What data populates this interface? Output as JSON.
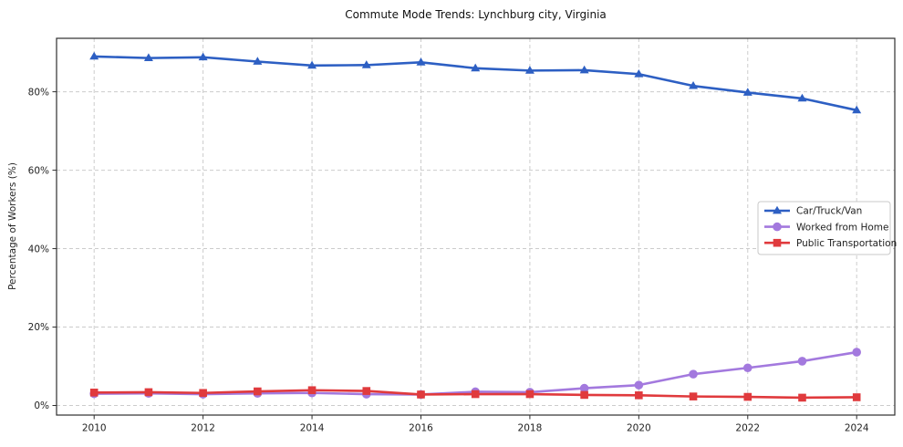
{
  "figure": {
    "title": "Commute Mode Trends: Lynchburg city, Virginia",
    "ylabel": "Percentage of Workers (%)"
  },
  "chart_data": {
    "type": "line",
    "title": "Commute Mode Trends: Lynchburg city, Virginia",
    "xlabel": "",
    "ylabel": "Percentage of Workers (%)",
    "x": [
      2010,
      2011,
      2012,
      2013,
      2014,
      2015,
      2016,
      2017,
      2018,
      2019,
      2020,
      2021,
      2022,
      2023,
      2024
    ],
    "x_tick_labels": [
      "2010",
      "2012",
      "2014",
      "2016",
      "2018",
      "2020",
      "2022",
      "2024"
    ],
    "x_ticks": [
      2010,
      2012,
      2014,
      2016,
      2018,
      2020,
      2022,
      2024
    ],
    "y_ticks": [
      0,
      20,
      40,
      60,
      80
    ],
    "y_tick_labels": [
      "0%",
      "20%",
      "40%",
      "60%",
      "80%"
    ],
    "xlim": [
      2009.31,
      2024.7
    ],
    "ylim": [
      -2.44,
      93.63
    ],
    "grid": true,
    "grid_style": "dashed",
    "legend_position": "center right",
    "series": [
      {
        "name": "Car/Truck/Van",
        "color": "#2d5fc3",
        "marker": "triangle",
        "values": [
          89.0,
          88.6,
          88.8,
          87.7,
          86.7,
          86.8,
          87.5,
          86.0,
          85.4,
          85.5,
          84.5,
          81.5,
          79.8,
          78.3,
          75.3
        ]
      },
      {
        "name": "Worked from Home",
        "color": "#a379de",
        "marker": "circle",
        "values": [
          3.0,
          3.1,
          2.9,
          3.1,
          3.2,
          2.9,
          2.8,
          3.5,
          3.4,
          4.4,
          5.2,
          8.0,
          9.6,
          11.3,
          13.6
        ]
      },
      {
        "name": "Public Transportation",
        "color": "#e03a3d",
        "marker": "square",
        "values": [
          3.3,
          3.4,
          3.2,
          3.6,
          3.9,
          3.7,
          2.8,
          2.9,
          2.9,
          2.7,
          2.6,
          2.3,
          2.2,
          2.0,
          2.1
        ]
      }
    ]
  }
}
